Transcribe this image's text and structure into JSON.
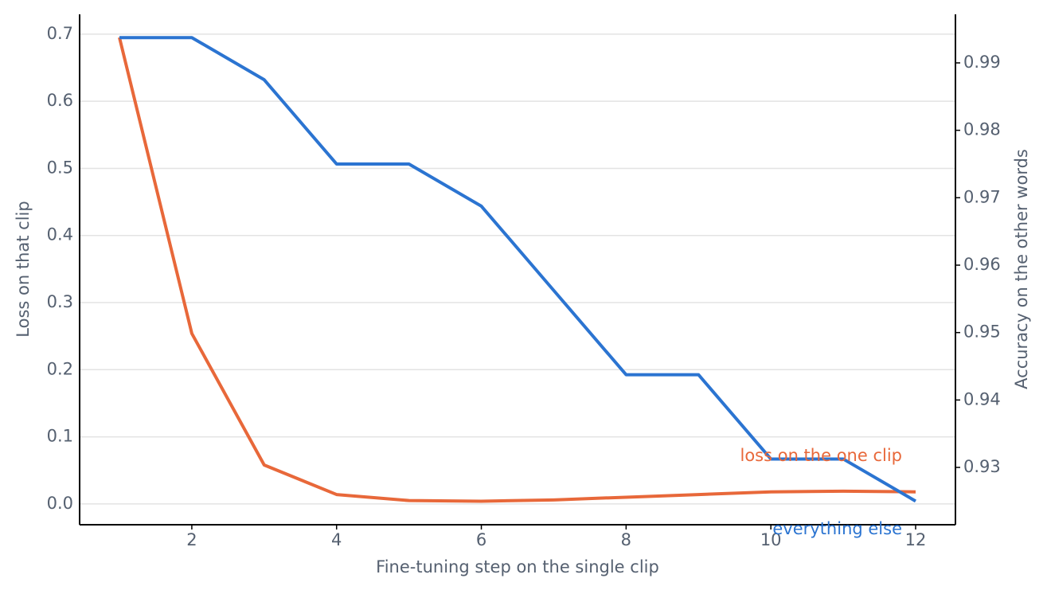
{
  "chart_data": {
    "type": "line",
    "x_label": "Fine-tuning step on the single clip",
    "y_label": "Loss on that clip",
    "y2_label": "Accuracy on the other words",
    "x": [
      1,
      2,
      3,
      4,
      5,
      6,
      7,
      8,
      9,
      10,
      11,
      12
    ],
    "series": [
      {
        "name": "loss on the one clip",
        "color": "#e8683a",
        "values": [
          0.695,
          0.254,
          0.058,
          0.014,
          0.005,
          0.004,
          0.006,
          0.01,
          0.014,
          0.018,
          0.019,
          0.018
        ]
      },
      {
        "name": "everything else",
        "color": "#2b74d1",
        "axis": "y2",
        "values": [
          0.99375,
          0.99375,
          0.9875,
          0.975,
          0.975,
          0.96875,
          0.95625,
          0.94375,
          0.94375,
          0.93125,
          0.93125,
          0.925
        ]
      }
    ],
    "xlim": [
      0.45,
      12.55
    ],
    "xticks": [
      2,
      4,
      6,
      8,
      10,
      12
    ],
    "ylim": [
      -0.031,
      0.7295
    ],
    "yticks": [
      {
        "value": 0,
        "label": "0.0"
      },
      0.1,
      0.2,
      0.3,
      0.4,
      0.5,
      0.6,
      0.7
    ],
    "y2lim": [
      0.9215,
      0.9972
    ],
    "y2ticks": [
      0.93,
      0.94,
      0.95,
      0.96,
      0.97,
      0.98,
      0.99
    ],
    "grid": true
  }
}
